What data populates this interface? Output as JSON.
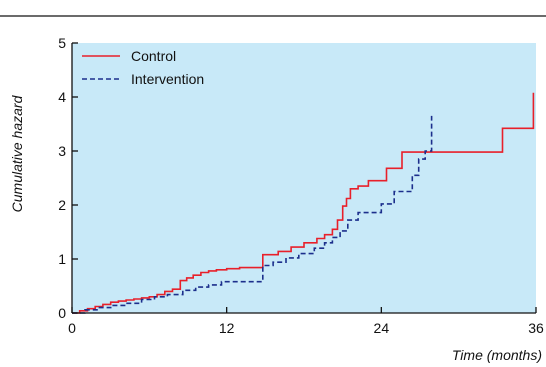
{
  "chart_data": {
    "type": "line",
    "xlabel": "Time (months)",
    "ylabel": "Cumulative hazard",
    "xlim": [
      0,
      36
    ],
    "ylim": [
      0,
      5
    ],
    "xticks": [
      0,
      12,
      24,
      36
    ],
    "yticks": [
      0,
      1,
      2,
      3,
      4,
      5
    ],
    "grid": false,
    "legend": "top-left",
    "background_color": "#c8e9f8",
    "series": [
      {
        "name": "Control",
        "color": "#e8202a",
        "style": "solid",
        "x": [
          0,
          0.6,
          1.2,
          1.8,
          2.4,
          3.0,
          3.6,
          4.2,
          4.8,
          5.4,
          6.0,
          6.6,
          7.2,
          7.8,
          8.4,
          8.9,
          9.4,
          10.0,
          10.6,
          11.2,
          12.0,
          13.0,
          14.8,
          16.0,
          17.0,
          18.0,
          19.0,
          19.6,
          20.2,
          20.6,
          21.0,
          21.3,
          21.6,
          22.2,
          23.0,
          24.4,
          25.6,
          26.6,
          27.6,
          33.4,
          35.8
        ],
        "y": [
          0,
          0.04,
          0.08,
          0.12,
          0.16,
          0.2,
          0.22,
          0.24,
          0.26,
          0.28,
          0.3,
          0.34,
          0.4,
          0.44,
          0.6,
          0.65,
          0.7,
          0.75,
          0.78,
          0.8,
          0.82,
          0.84,
          1.08,
          1.14,
          1.22,
          1.3,
          1.38,
          1.45,
          1.55,
          1.72,
          1.98,
          2.12,
          2.3,
          2.35,
          2.45,
          2.68,
          2.98,
          2.98,
          2.98,
          3.42,
          4.08
        ]
      },
      {
        "name": "Intervention",
        "color": "#1c2f8c",
        "style": "dashed",
        "x": [
          0,
          1.0,
          2.0,
          3.0,
          4.2,
          5.4,
          6.4,
          7.4,
          8.6,
          9.6,
          10.6,
          11.6,
          14.8,
          15.6,
          16.6,
          17.6,
          18.8,
          19.6,
          20.2,
          20.8,
          21.4,
          22.2,
          24.0,
          25.0,
          26.4,
          26.9,
          27.4,
          27.9
        ],
        "y": [
          0,
          0.06,
          0.1,
          0.14,
          0.18,
          0.25,
          0.3,
          0.34,
          0.42,
          0.48,
          0.52,
          0.58,
          0.88,
          0.94,
          1.02,
          1.1,
          1.2,
          1.3,
          1.4,
          1.52,
          1.72,
          1.86,
          2.02,
          2.25,
          2.55,
          2.85,
          3.0,
          3.65
        ]
      }
    ]
  }
}
